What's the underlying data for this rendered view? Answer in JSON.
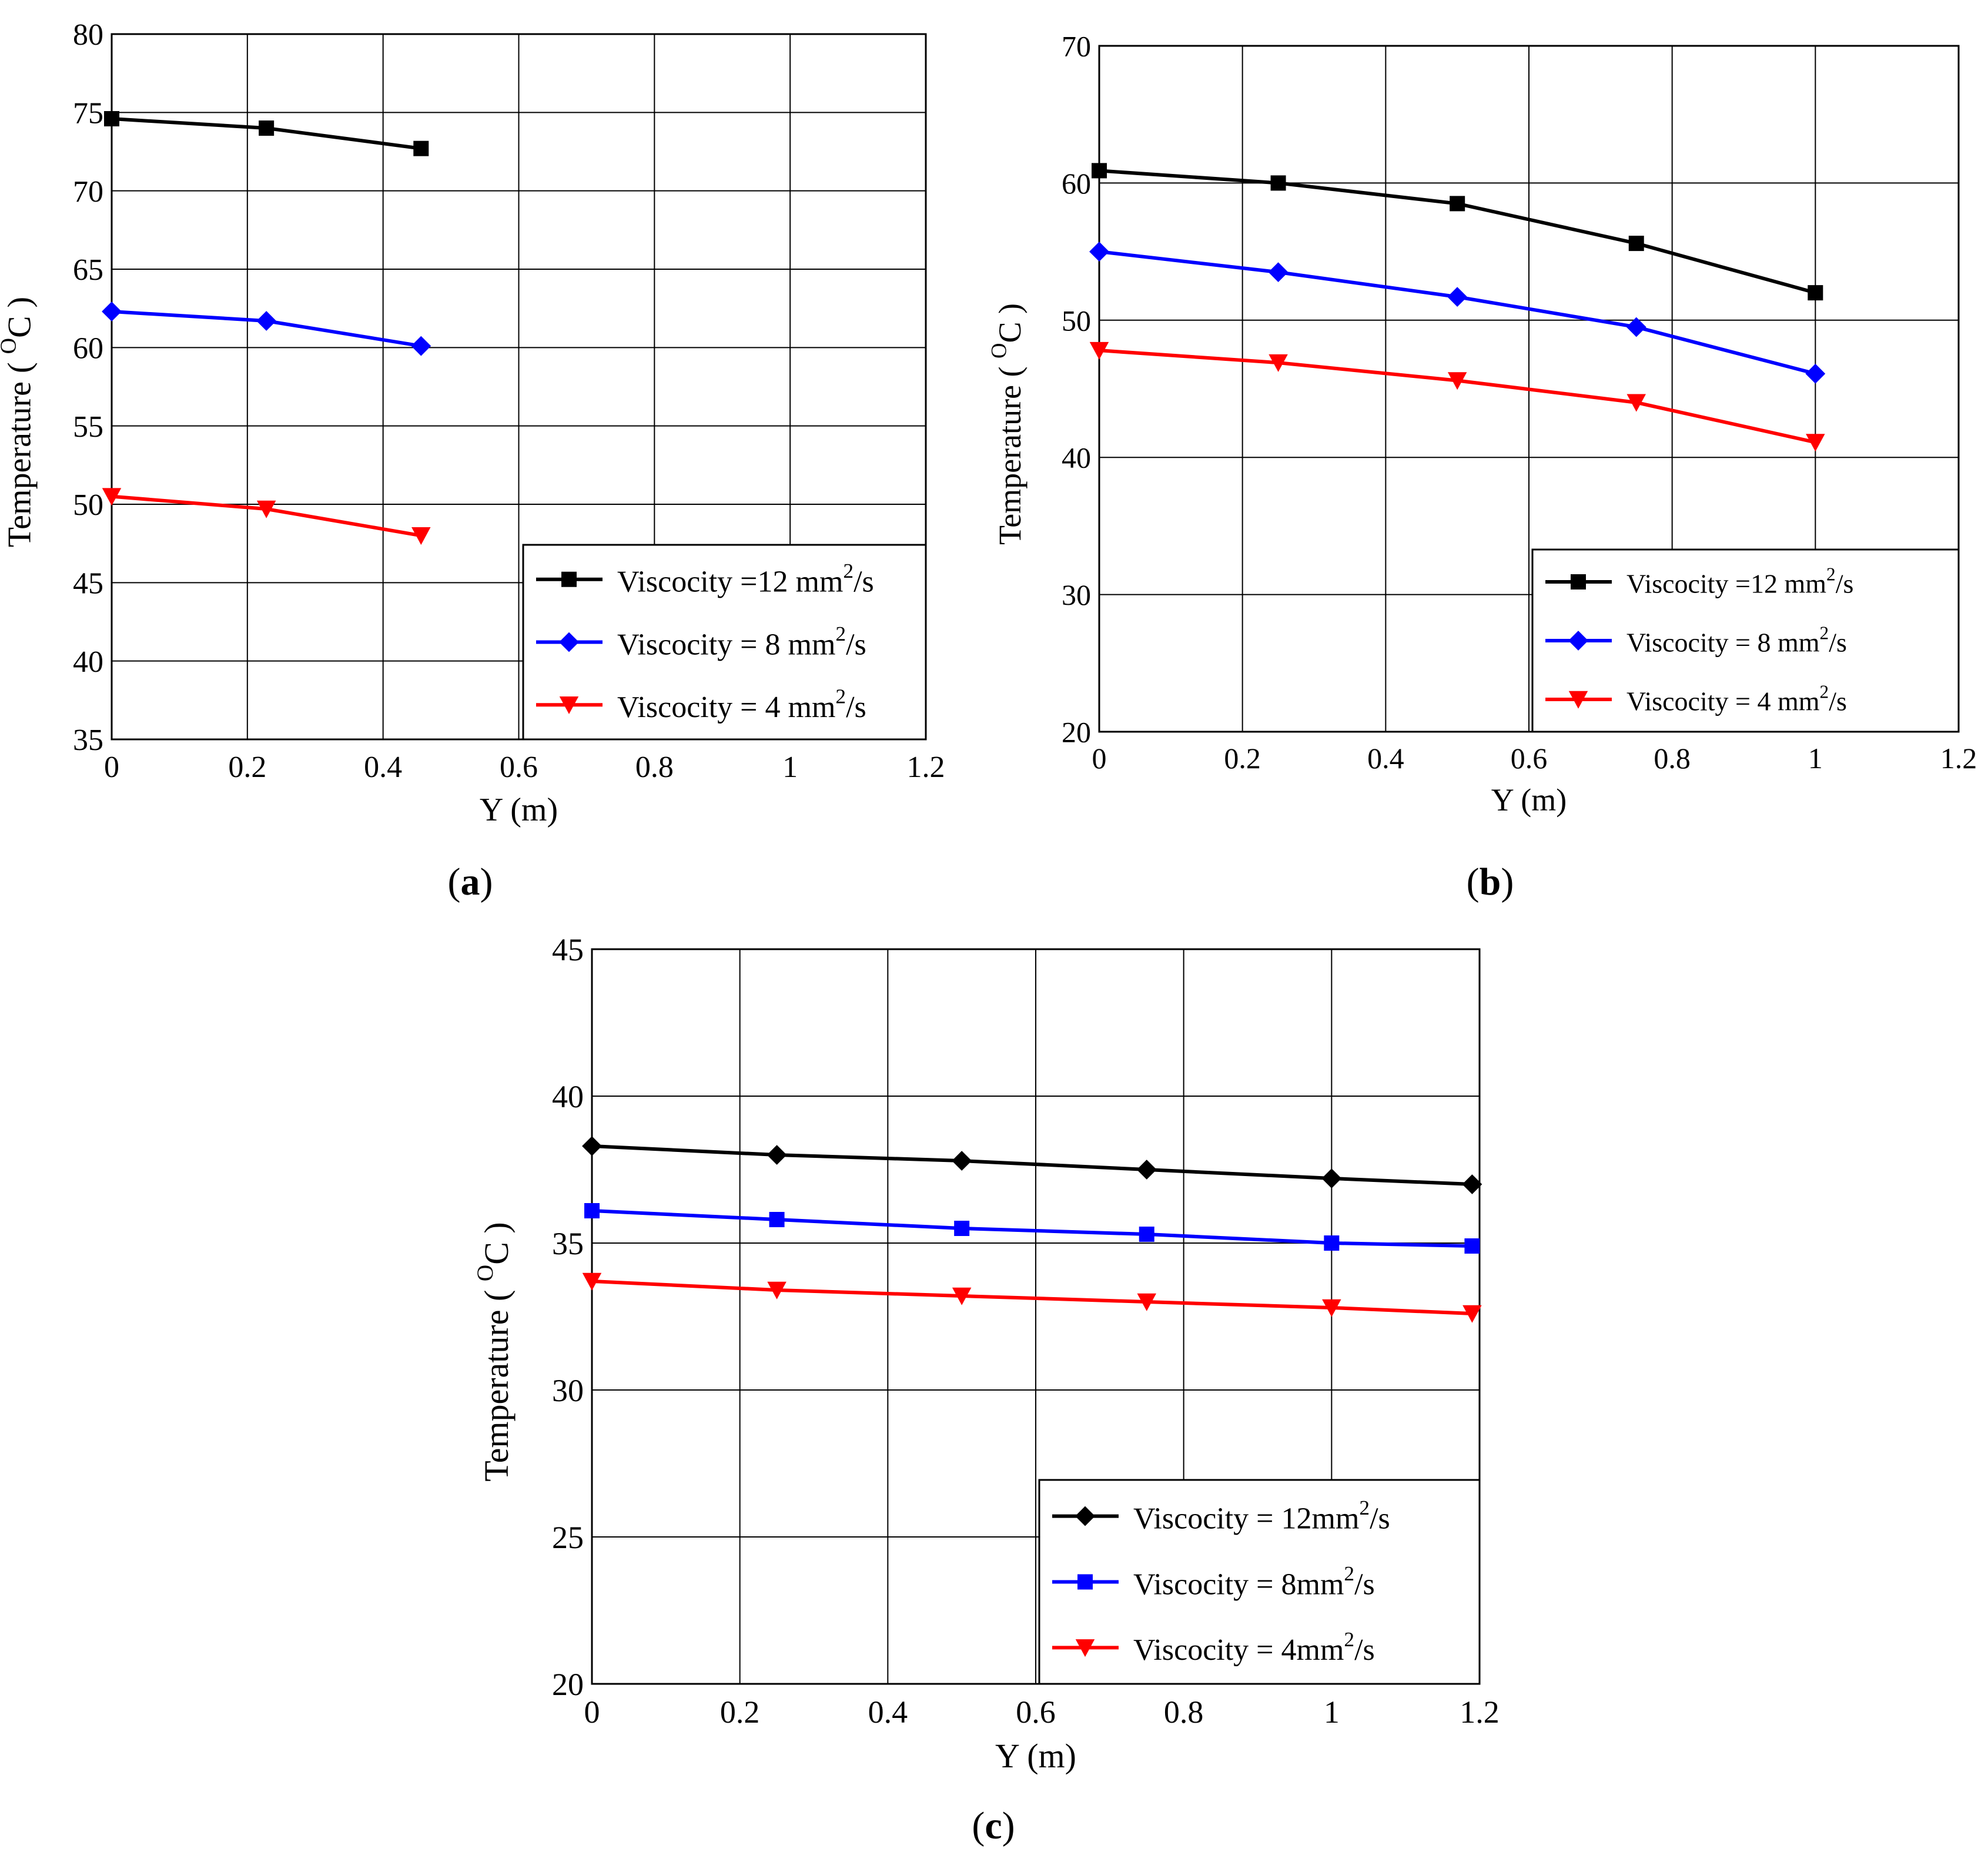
{
  "figure": {
    "panels": [
      "a",
      "b",
      "c"
    ]
  },
  "chart_data": [
    {
      "id": "a",
      "panel_label": "a",
      "type": "line",
      "title": "",
      "xlabel": "Y (m)",
      "ylabel": "Temperature",
      "ylabel_unit_super": "O",
      "ylabel_unit": "C",
      "xlim": [
        0,
        1.2
      ],
      "ylim": [
        35,
        80
      ],
      "xticks": [
        0,
        0.2,
        0.4,
        0.6,
        0.8,
        1,
        1.2
      ],
      "xtick_labels": [
        "0",
        "0.2",
        "0.4",
        "0.6",
        "0.8",
        "1",
        "1.2"
      ],
      "yticks": [
        35,
        40,
        45,
        50,
        55,
        60,
        65,
        70,
        75,
        80
      ],
      "ytick_labels": [
        "35",
        "40",
        "45",
        "50",
        "55",
        "60",
        "65",
        "70",
        "75",
        "80"
      ],
      "grid": true,
      "legend_position": "bottom-right",
      "series": [
        {
          "name": "Viscocity =12 mm",
          "sup": "2",
          "unit_tail": "/s",
          "color": "#000000",
          "marker": "square",
          "x": [
            0,
            0.228,
            0.456
          ],
          "y": [
            74.6,
            74.0,
            72.7
          ]
        },
        {
          "name": "Viscocity = 8 mm",
          "sup": "2",
          "unit_tail": "/s",
          "color": "#0000ff",
          "marker": "diamond",
          "x": [
            0,
            0.228,
            0.456
          ],
          "y": [
            62.3,
            61.7,
            60.1
          ]
        },
        {
          "name": "Viscocity = 4 mm",
          "sup": "2",
          "unit_tail": "/s",
          "color": "#ff0000",
          "marker": "triangle-down",
          "x": [
            0,
            0.228,
            0.456
          ],
          "y": [
            50.5,
            49.7,
            48.0
          ]
        }
      ]
    },
    {
      "id": "b",
      "panel_label": "b",
      "type": "line",
      "title": "",
      "xlabel": "Y (m)",
      "ylabel": "Temperature",
      "ylabel_unit_super": "O",
      "ylabel_unit": "C",
      "xlim": [
        0,
        1.2
      ],
      "ylim": [
        20,
        70
      ],
      "xticks": [
        0,
        0.2,
        0.4,
        0.6,
        0.8,
        1,
        1.2
      ],
      "xtick_labels": [
        "0",
        "0.2",
        "0.4",
        "0.6",
        "0.8",
        "1",
        "1.2"
      ],
      "yticks": [
        20,
        30,
        40,
        50,
        60,
        70
      ],
      "ytick_labels": [
        "20",
        "30",
        "40",
        "50",
        "60",
        "70"
      ],
      "grid": true,
      "legend_position": "bottom-right",
      "series": [
        {
          "name": "Viscocity =12 mm",
          "sup": "2",
          "unit_tail": "/s",
          "color": "#000000",
          "marker": "square",
          "x": [
            0,
            0.25,
            0.5,
            0.75,
            1.0
          ],
          "y": [
            60.9,
            60.0,
            58.5,
            55.6,
            52.0
          ]
        },
        {
          "name": "Viscocity = 8 mm",
          "sup": "2",
          "unit_tail": "/s",
          "color": "#0000ff",
          "marker": "diamond",
          "x": [
            0,
            0.25,
            0.5,
            0.75,
            1.0
          ],
          "y": [
            55.0,
            53.5,
            51.7,
            49.5,
            46.1
          ]
        },
        {
          "name": "Viscocity = 4 mm",
          "sup": "2",
          "unit_tail": "/s",
          "color": "#ff0000",
          "marker": "triangle-down",
          "x": [
            0,
            0.25,
            0.5,
            0.75,
            1.0
          ],
          "y": [
            47.8,
            46.9,
            45.6,
            44.0,
            41.1
          ]
        }
      ]
    },
    {
      "id": "c",
      "panel_label": "c",
      "type": "line",
      "title": "",
      "xlabel": "Y (m)",
      "ylabel": "Temperature",
      "ylabel_unit_super": "O",
      "ylabel_unit": "C",
      "xlim": [
        0,
        1.2
      ],
      "ylim": [
        20,
        45
      ],
      "xticks": [
        0,
        0.2,
        0.4,
        0.6,
        0.8,
        1,
        1.2
      ],
      "xtick_labels": [
        "0",
        "0.2",
        "0.4",
        "0.6",
        "0.8",
        "1",
        "1.2"
      ],
      "yticks": [
        20,
        25,
        30,
        35,
        40,
        45
      ],
      "ytick_labels": [
        "20",
        "25",
        "30",
        "35",
        "40",
        "45"
      ],
      "grid": true,
      "legend_position": "bottom-right",
      "series": [
        {
          "name": "Viscocity = 12mm",
          "sup": "2",
          "unit_tail": "/s",
          "color": "#000000",
          "marker": "diamond",
          "x": [
            0,
            0.25,
            0.5,
            0.75,
            1.0,
            1.19
          ],
          "y": [
            38.3,
            38.0,
            37.8,
            37.5,
            37.2,
            37.0
          ]
        },
        {
          "name": "Viscocity = 8mm",
          "sup": "2",
          "unit_tail": "/s",
          "color": "#0000ff",
          "marker": "square",
          "x": [
            0,
            0.25,
            0.5,
            0.75,
            1.0,
            1.19
          ],
          "y": [
            36.1,
            35.8,
            35.5,
            35.3,
            35.0,
            34.9
          ]
        },
        {
          "name": "Viscocity = 4mm",
          "sup": "2",
          "unit_tail": "/s",
          "color": "#ff0000",
          "marker": "triangle-down",
          "x": [
            0,
            0.25,
            0.5,
            0.75,
            1.0,
            1.19
          ],
          "y": [
            33.7,
            33.4,
            33.2,
            33.0,
            32.8,
            32.6
          ]
        }
      ]
    }
  ]
}
